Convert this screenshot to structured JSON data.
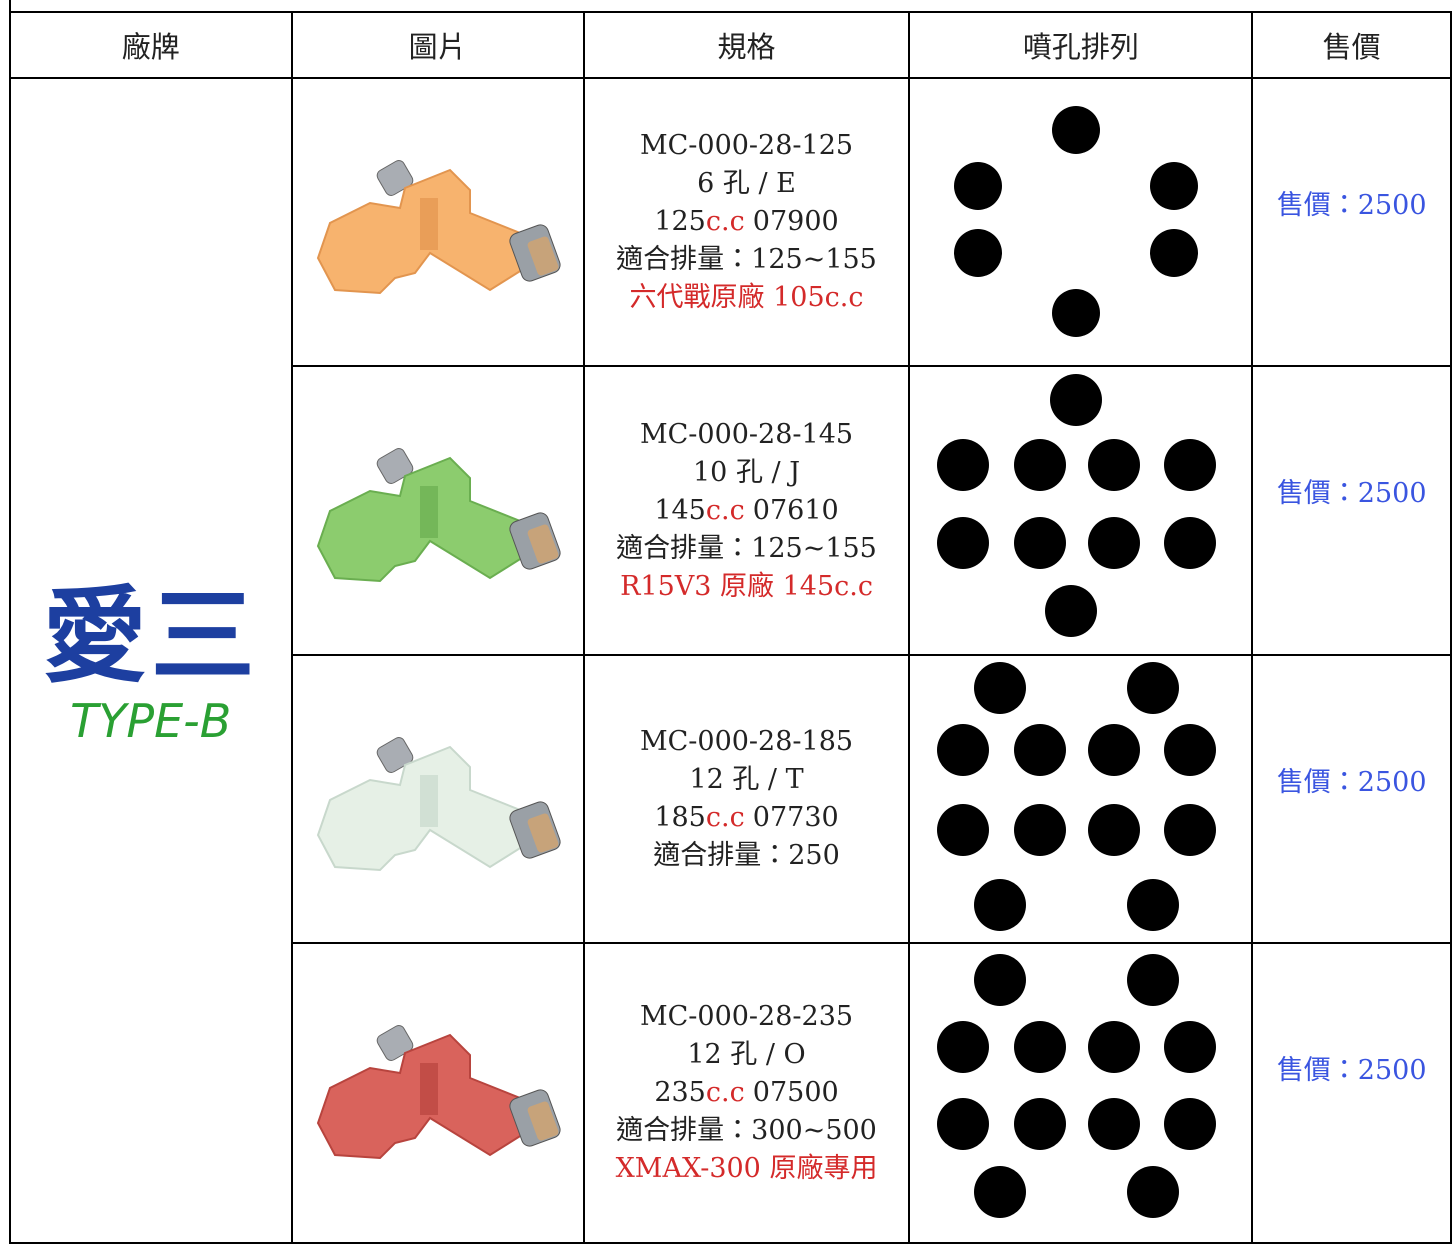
{
  "header": [
    "廠牌",
    "圖片",
    "規格",
    "噴孔排列",
    "售價"
  ],
  "brand": {
    "name": "愛三",
    "type": "TYPE-B"
  },
  "rows": [
    {
      "model": "MC-000-28-125",
      "holes": "6 孔 / E",
      "cc": "125",
      "unit": "c.c",
      "code": "07900",
      "fit": "適合排量：125~155",
      "note": "六代戰原廠 105c.c",
      "price": "售價：2500"
    },
    {
      "model": "MC-000-28-145",
      "holes": "10 孔 / J",
      "cc": "145",
      "unit": "c.c",
      "code": "07610",
      "fit": "適合排量：125~155",
      "note": "R15V3 原廠 145c.c",
      "price": "售價：2500"
    },
    {
      "model": "MC-000-28-185",
      "holes": "12 孔 / T",
      "cc": "185",
      "unit": "c.c",
      "code": "07730",
      "fit": "適合排量：250",
      "price": "售價：2500"
    },
    {
      "model": "MC-000-28-235",
      "holes": "12 孔 / O",
      "cc": "235",
      "unit": "c.c",
      "code": "07500",
      "fit": "適合排量：300~500",
      "note": "XMAX-300 原廠專用",
      "price": "售價：2500"
    }
  ]
}
